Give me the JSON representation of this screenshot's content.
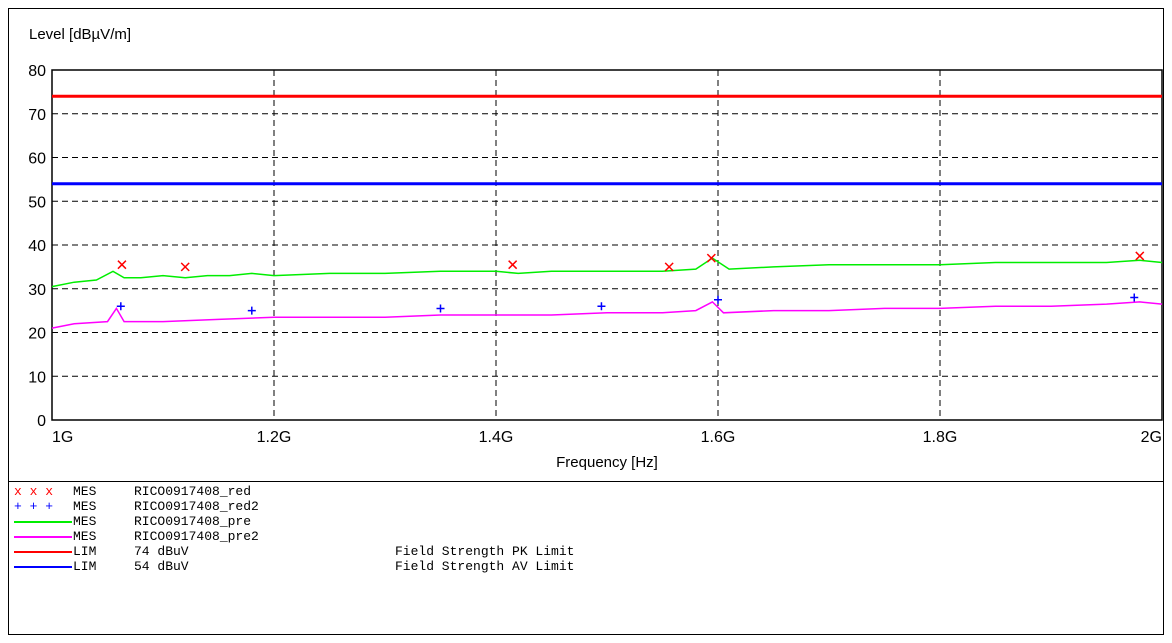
{
  "chart_data": {
    "type": "line",
    "title": "",
    "ylabel": "Level [dBµV/m]",
    "xlabel": "Frequency [Hz]",
    "xlim": [
      1.0,
      2.0
    ],
    "ylim": [
      0,
      80
    ],
    "x_ticks": [
      {
        "value": 1.0,
        "label": "1G"
      },
      {
        "value": 1.2,
        "label": "1.2G"
      },
      {
        "value": 1.4,
        "label": "1.4G"
      },
      {
        "value": 1.6,
        "label": "1.6G"
      },
      {
        "value": 1.8,
        "label": "1.8G"
      },
      {
        "value": 2.0,
        "label": "2G"
      }
    ],
    "y_ticks": [
      0,
      10,
      20,
      30,
      40,
      50,
      60,
      70,
      80
    ],
    "grid": true,
    "series": [
      {
        "name": "RICO0917408_pre",
        "kind": "MES",
        "color": "#00ee00",
        "style": "line",
        "x": [
          1.0,
          1.02,
          1.04,
          1.055,
          1.065,
          1.08,
          1.1,
          1.12,
          1.14,
          1.16,
          1.18,
          1.2,
          1.25,
          1.3,
          1.35,
          1.4,
          1.42,
          1.45,
          1.5,
          1.55,
          1.58,
          1.595,
          1.61,
          1.65,
          1.7,
          1.75,
          1.8,
          1.85,
          1.9,
          1.95,
          1.98,
          2.0
        ],
        "y": [
          30.5,
          31.5,
          32,
          34,
          32.5,
          32.5,
          33,
          32.5,
          33,
          33,
          33.5,
          33,
          33.5,
          33.5,
          34,
          34,
          33.5,
          34,
          34,
          34,
          34.5,
          37,
          34.5,
          35,
          35.5,
          35.5,
          35.5,
          36,
          36,
          36,
          36.5,
          36
        ]
      },
      {
        "name": "RICO0917408_pre2",
        "kind": "MES",
        "color": "#ff00ff",
        "style": "line",
        "x": [
          1.0,
          1.02,
          1.05,
          1.058,
          1.065,
          1.1,
          1.15,
          1.2,
          1.25,
          1.3,
          1.35,
          1.4,
          1.45,
          1.5,
          1.55,
          1.58,
          1.595,
          1.605,
          1.65,
          1.7,
          1.75,
          1.8,
          1.85,
          1.9,
          1.95,
          1.98,
          2.0
        ],
        "y": [
          21,
          22,
          22.5,
          25.5,
          22.5,
          22.5,
          23,
          23.5,
          23.5,
          23.5,
          24,
          24,
          24,
          24.5,
          24.5,
          25,
          27,
          24.5,
          25,
          25,
          25.5,
          25.5,
          26,
          26,
          26.5,
          27,
          26.5
        ]
      },
      {
        "name": "RICO0917408_red",
        "kind": "MES",
        "color": "#ff0000",
        "style": "x-marker",
        "x": [
          1.063,
          1.12,
          1.415,
          1.556,
          1.594,
          1.98
        ],
        "y": [
          35.5,
          35,
          35.5,
          35,
          37,
          37.5
        ]
      },
      {
        "name": "RICO0917408_red2",
        "kind": "MES",
        "color": "#0000ff",
        "style": "plus-marker",
        "x": [
          1.062,
          1.18,
          1.35,
          1.495,
          1.6,
          1.975
        ],
        "y": [
          26,
          25,
          25.5,
          26,
          27.5,
          28
        ]
      },
      {
        "name": "74 dBuV",
        "kind": "LIM",
        "color": "#ff0000",
        "style": "limit",
        "x": [
          1.0,
          2.0
        ],
        "y": [
          74,
          74
        ],
        "description": "Field Strength PK Limit"
      },
      {
        "name": "54 dBuV",
        "kind": "LIM",
        "color": "#0000ff",
        "style": "limit",
        "x": [
          1.0,
          2.0
        ],
        "y": [
          54,
          54
        ],
        "description": "Field Strength AV Limit"
      }
    ]
  },
  "legend": [
    {
      "symbol": "x",
      "color": "#ff0000",
      "marks": "x x x",
      "kind": "MES",
      "name": "RICO0917408_red",
      "desc": ""
    },
    {
      "symbol": "plus",
      "color": "#0000ff",
      "marks": "+ + +",
      "kind": "MES",
      "name": "RICO0917408_red2",
      "desc": ""
    },
    {
      "symbol": "line",
      "color": "#00ee00",
      "kind": "MES",
      "name": "RICO0917408_pre",
      "desc": ""
    },
    {
      "symbol": "line",
      "color": "#ff00ff",
      "kind": "MES",
      "name": "RICO0917408_pre2",
      "desc": ""
    },
    {
      "symbol": "line",
      "color": "#ff0000",
      "kind": "LIM",
      "name": "74 dBuV",
      "desc": "Field Strength PK Limit"
    },
    {
      "symbol": "line",
      "color": "#0000ff",
      "kind": "LIM",
      "name": "54 dBuV",
      "desc": "Field Strength AV Limit"
    }
  ]
}
